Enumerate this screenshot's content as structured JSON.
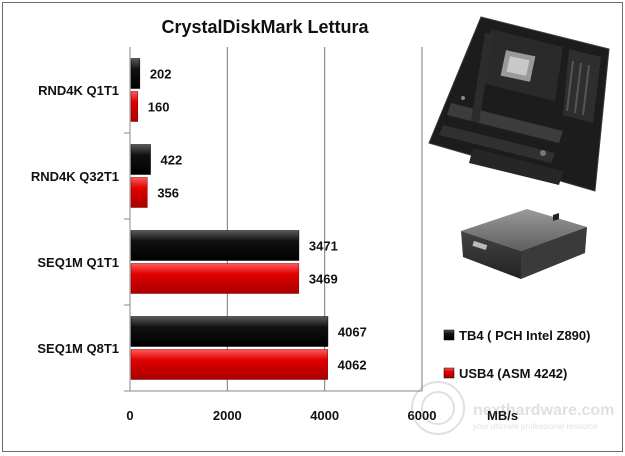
{
  "chart_data": {
    "type": "bar",
    "orientation": "horizontal",
    "title": "CrystalDiskMark  Lettura",
    "xlabel": "MB/s",
    "ylabel": "",
    "categories": [
      "RND4K Q1T1",
      "RND4K Q32T1",
      "SEQ1M Q1T1",
      "SEQ1M Q8T1"
    ],
    "series": [
      {
        "name": "TB4 ( PCH Intel Z890)",
        "color": "#000000",
        "values": [
          202,
          422,
          3471,
          4067
        ]
      },
      {
        "name": "USB4 (ASM 4242)",
        "color": "#d40000",
        "values": [
          160,
          356,
          3469,
          4062
        ]
      }
    ],
    "xlim": [
      0,
      6000
    ],
    "xticks": [
      0,
      2000,
      4000,
      6000
    ],
    "grid": true,
    "legend": "bottom-right",
    "data_labels": true
  },
  "images": {
    "top_right": "motherboard-image",
    "middle_right": "mini-pc-image"
  },
  "watermark": {
    "text": "nexthardware.com",
    "tagline": "your ultimate professional resource"
  }
}
